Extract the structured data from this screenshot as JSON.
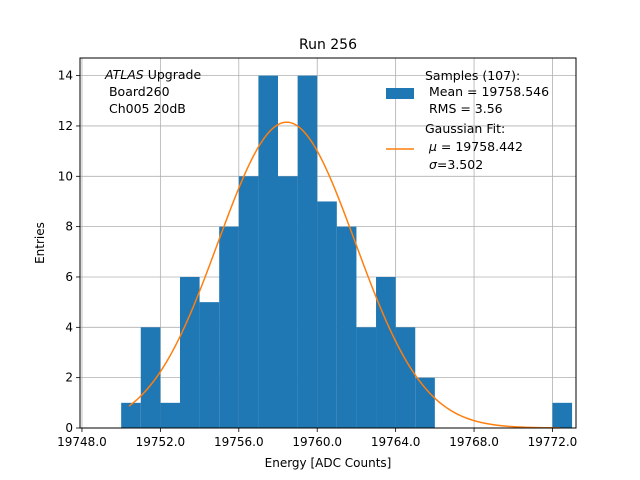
{
  "chart_data": {
    "type": "bar",
    "title": "Run 256",
    "xlabel": "Energy [ADC Counts]",
    "ylabel": "Entries",
    "xlim": [
      19747.9,
      19773.2
    ],
    "ylim": [
      0,
      14.7
    ],
    "xticks": [
      19748,
      19752,
      19756,
      19760,
      19764,
      19768,
      19772
    ],
    "xtick_labels": [
      "19748.0",
      "19752.0",
      "19756.0",
      "19760.0",
      "19764.0",
      "19768.0",
      "19772.0"
    ],
    "yticks": [
      0,
      2,
      4,
      6,
      8,
      10,
      12,
      14
    ],
    "ytick_labels": [
      "0",
      "2",
      "4",
      "6",
      "8",
      "10",
      "12",
      "14"
    ],
    "grid": true,
    "bin_width": 1,
    "bins": [
      {
        "x0": 19750,
        "value": 1
      },
      {
        "x0": 19751,
        "value": 4
      },
      {
        "x0": 19752,
        "value": 1
      },
      {
        "x0": 19753,
        "value": 6
      },
      {
        "x0": 19754,
        "value": 5
      },
      {
        "x0": 19755,
        "value": 8
      },
      {
        "x0": 19756,
        "value": 10
      },
      {
        "x0": 19757,
        "value": 14
      },
      {
        "x0": 19758,
        "value": 10
      },
      {
        "x0": 19759,
        "value": 14
      },
      {
        "x0": 19760,
        "value": 9
      },
      {
        "x0": 19761,
        "value": 8
      },
      {
        "x0": 19762,
        "value": 4
      },
      {
        "x0": 19763,
        "value": 6
      },
      {
        "x0": 19764,
        "value": 4
      },
      {
        "x0": 19765,
        "value": 2
      },
      {
        "x0": 19772,
        "value": 1
      }
    ],
    "fit": {
      "mu": 19758.442,
      "sigma": 3.502,
      "amplitude": 12.15,
      "x_start": 19750.4,
      "x_end": 19772.4
    },
    "series": [
      {
        "name": "Samples (107):",
        "color": "#1f77b4"
      },
      {
        "name": "Gaussian Fit:",
        "color": "#ff7f0e"
      }
    ],
    "legend": {
      "placement": "top-right",
      "samples_title": "Samples (107):",
      "samples_mean": " Mean = 19758.546",
      "samples_rms": " RMS = 3.56",
      "fit_title": "Gaussian Fit:",
      "fit_mu_prefix": " μ",
      "fit_mu_value": " = 19758.442",
      "fit_sigma_prefix": " σ",
      "fit_sigma_value": "=3.502"
    },
    "annotation": {
      "line1_italic": "ATLAS",
      "line1_rest": " Upgrade",
      "line2": " Board260",
      "line3": " Ch005 20dB"
    }
  }
}
